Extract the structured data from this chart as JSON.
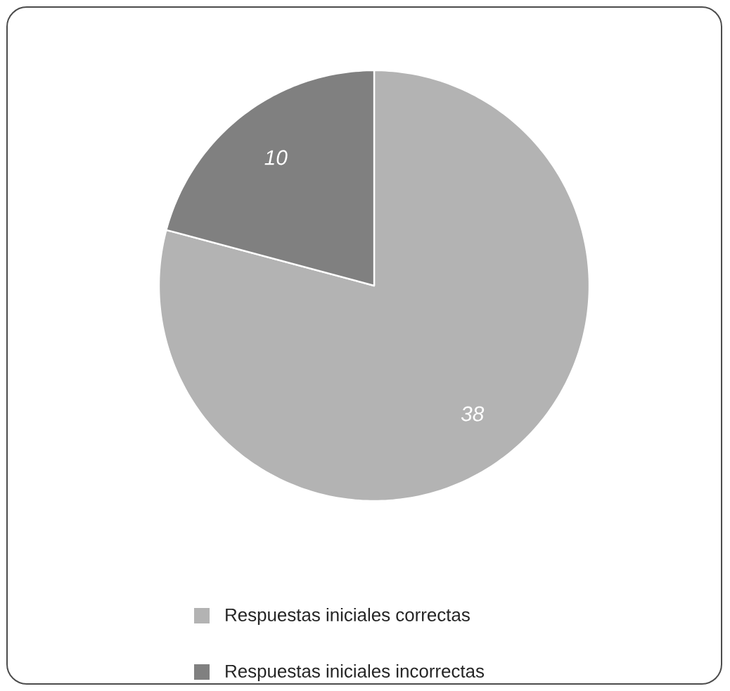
{
  "chart_data": {
    "type": "pie",
    "categories": [
      "Respuestas iniciales correctas",
      "Respuestas iniciales incorrectas"
    ],
    "values": [
      38,
      10
    ],
    "colors": [
      "#b3b3b3",
      "#808080"
    ],
    "data_labels": true,
    "legend": "bottom left"
  }
}
